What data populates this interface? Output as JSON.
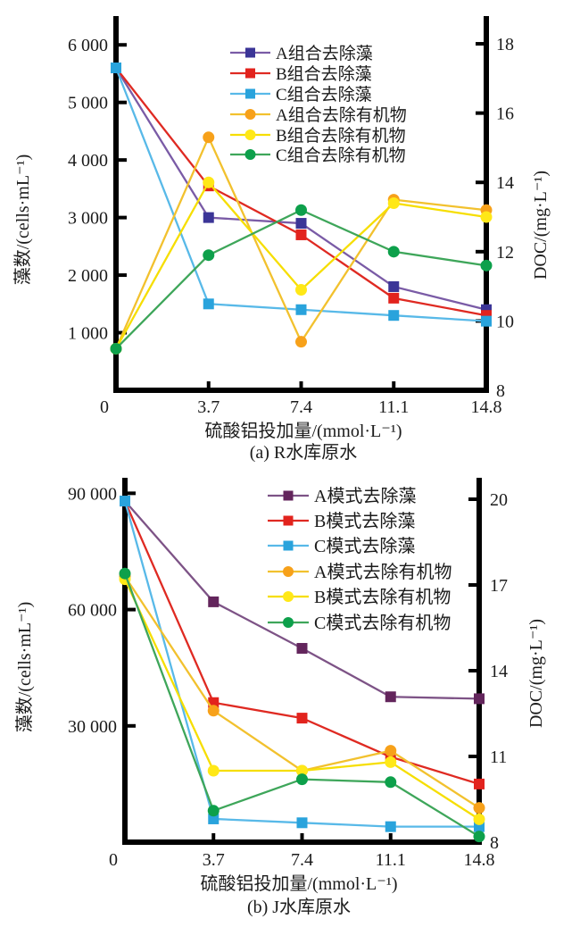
{
  "page": {
    "background": "#ffffff",
    "text_color": "#1b1b1b",
    "axis_color": "#000000"
  },
  "chart_data": [
    {
      "type": "line",
      "panel": "a",
      "caption": "(a) R水库原水",
      "xlabel": "硫酸铝投加量/(mmol·L⁻¹)",
      "ylabel_left": "藻数/(cells·mL⁻¹)",
      "ylabel_right": "DOC/(mg·L⁻¹)",
      "x": [
        0,
        3.7,
        7.4,
        11.1,
        14.8
      ],
      "x_tick_labels": [
        "0",
        "3.7",
        "7.4",
        "11.1",
        "14.8"
      ],
      "left_axis": {
        "lim": [
          0,
          6500
        ],
        "ticks": [
          6000,
          5000,
          4000,
          3000,
          2000,
          1000
        ],
        "tick_labels": [
          "6 000",
          "5 000",
          "4 000",
          "3 000",
          "2 000",
          "1 000"
        ]
      },
      "right_axis": {
        "lim": [
          8,
          18.8
        ],
        "ticks": [
          18,
          16,
          14,
          12,
          10,
          8
        ],
        "tick_labels": [
          "18",
          "16",
          "14",
          "12",
          "10",
          "8"
        ]
      },
      "grid": false,
      "legend_position": "inside-top-center",
      "series": [
        {
          "name": "A组合去除藻",
          "axis": "left",
          "marker": "square",
          "marker_color": "#3b3597",
          "line_color": "#7a5ba6",
          "values": [
            5600,
            3000,
            2900,
            1800,
            1400
          ]
        },
        {
          "name": "B组合去除藻",
          "axis": "left",
          "marker": "square",
          "marker_color": "#e2231d",
          "line_color": "#df2a22",
          "values": [
            5600,
            3550,
            2700,
            1600,
            1300
          ]
        },
        {
          "name": "C组合去除藻",
          "axis": "left",
          "marker": "square",
          "marker_color": "#29a3dc",
          "line_color": "#58b9e8",
          "values": [
            5600,
            1500,
            1400,
            1300,
            1200
          ]
        },
        {
          "name": "A组合去除有机物",
          "axis": "right",
          "marker": "circle",
          "marker_color": "#f7a11a",
          "line_color": "#f2c12e",
          "values": [
            9.2,
            15.3,
            9.4,
            13.5,
            13.2
          ]
        },
        {
          "name": "B组合去除有机物",
          "axis": "right",
          "marker": "circle",
          "marker_color": "#ffe817",
          "line_color": "#f6de00",
          "values": [
            9.2,
            14.0,
            10.9,
            13.4,
            13.0
          ]
        },
        {
          "name": "C组合去除有机物",
          "axis": "right",
          "marker": "circle",
          "marker_color": "#0da04b",
          "line_color": "#3ea65a",
          "values": [
            9.2,
            11.9,
            13.2,
            12.0,
            11.6
          ]
        }
      ]
    },
    {
      "type": "line",
      "panel": "b",
      "caption": "(b) J水库原水",
      "xlabel": "硫酸铝投加量/(mmol·L⁻¹)",
      "ylabel_left": "藻数/(cells·mL⁻¹)",
      "ylabel_right": "DOC/(mg·L⁻¹)",
      "x": [
        0,
        3.7,
        7.4,
        11.1,
        14.8
      ],
      "x_tick_labels": [
        "0",
        "3.7",
        "7.4",
        "11.1",
        "14.8"
      ],
      "left_axis": {
        "lim": [
          0,
          94000
        ],
        "ticks": [
          90000,
          60000,
          30000
        ],
        "tick_labels": [
          "90 000",
          "60 000",
          "30 000"
        ]
      },
      "right_axis": {
        "lim": [
          8,
          20.75
        ],
        "ticks": [
          20,
          17,
          14,
          11,
          8
        ],
        "tick_labels": [
          "20",
          "17",
          "14",
          "11",
          "8"
        ]
      },
      "grid": false,
      "legend_position": "inside-top-center",
      "series": [
        {
          "name": "A模式去除藻",
          "axis": "left",
          "marker": "square",
          "marker_color": "#63255c",
          "line_color": "#7d5386",
          "values": [
            88000,
            62000,
            50000,
            37500,
            37000
          ]
        },
        {
          "name": "B模式去除藻",
          "axis": "left",
          "marker": "square",
          "marker_color": "#e2231d",
          "line_color": "#df2a22",
          "values": [
            88000,
            36000,
            32000,
            22000,
            15000
          ]
        },
        {
          "name": "C模式去除藻",
          "axis": "left",
          "marker": "square",
          "marker_color": "#29a3dc",
          "line_color": "#58b9e8",
          "values": [
            88000,
            6000,
            5000,
            4000,
            4000
          ]
        },
        {
          "name": "A模式去除有机物",
          "axis": "right",
          "marker": "circle",
          "marker_color": "#f7a11a",
          "line_color": "#f2c12e",
          "values": [
            17.3,
            12.6,
            10.5,
            11.2,
            9.2
          ]
        },
        {
          "name": "B模式去除有机物",
          "axis": "right",
          "marker": "circle",
          "marker_color": "#ffe817",
          "line_color": "#f6de00",
          "values": [
            17.2,
            10.5,
            10.5,
            10.8,
            8.8
          ]
        },
        {
          "name": "C模式去除有机物",
          "axis": "right",
          "marker": "circle",
          "marker_color": "#0da04b",
          "line_color": "#3ea65a",
          "values": [
            17.4,
            9.1,
            10.2,
            10.1,
            8.2
          ]
        }
      ]
    }
  ]
}
